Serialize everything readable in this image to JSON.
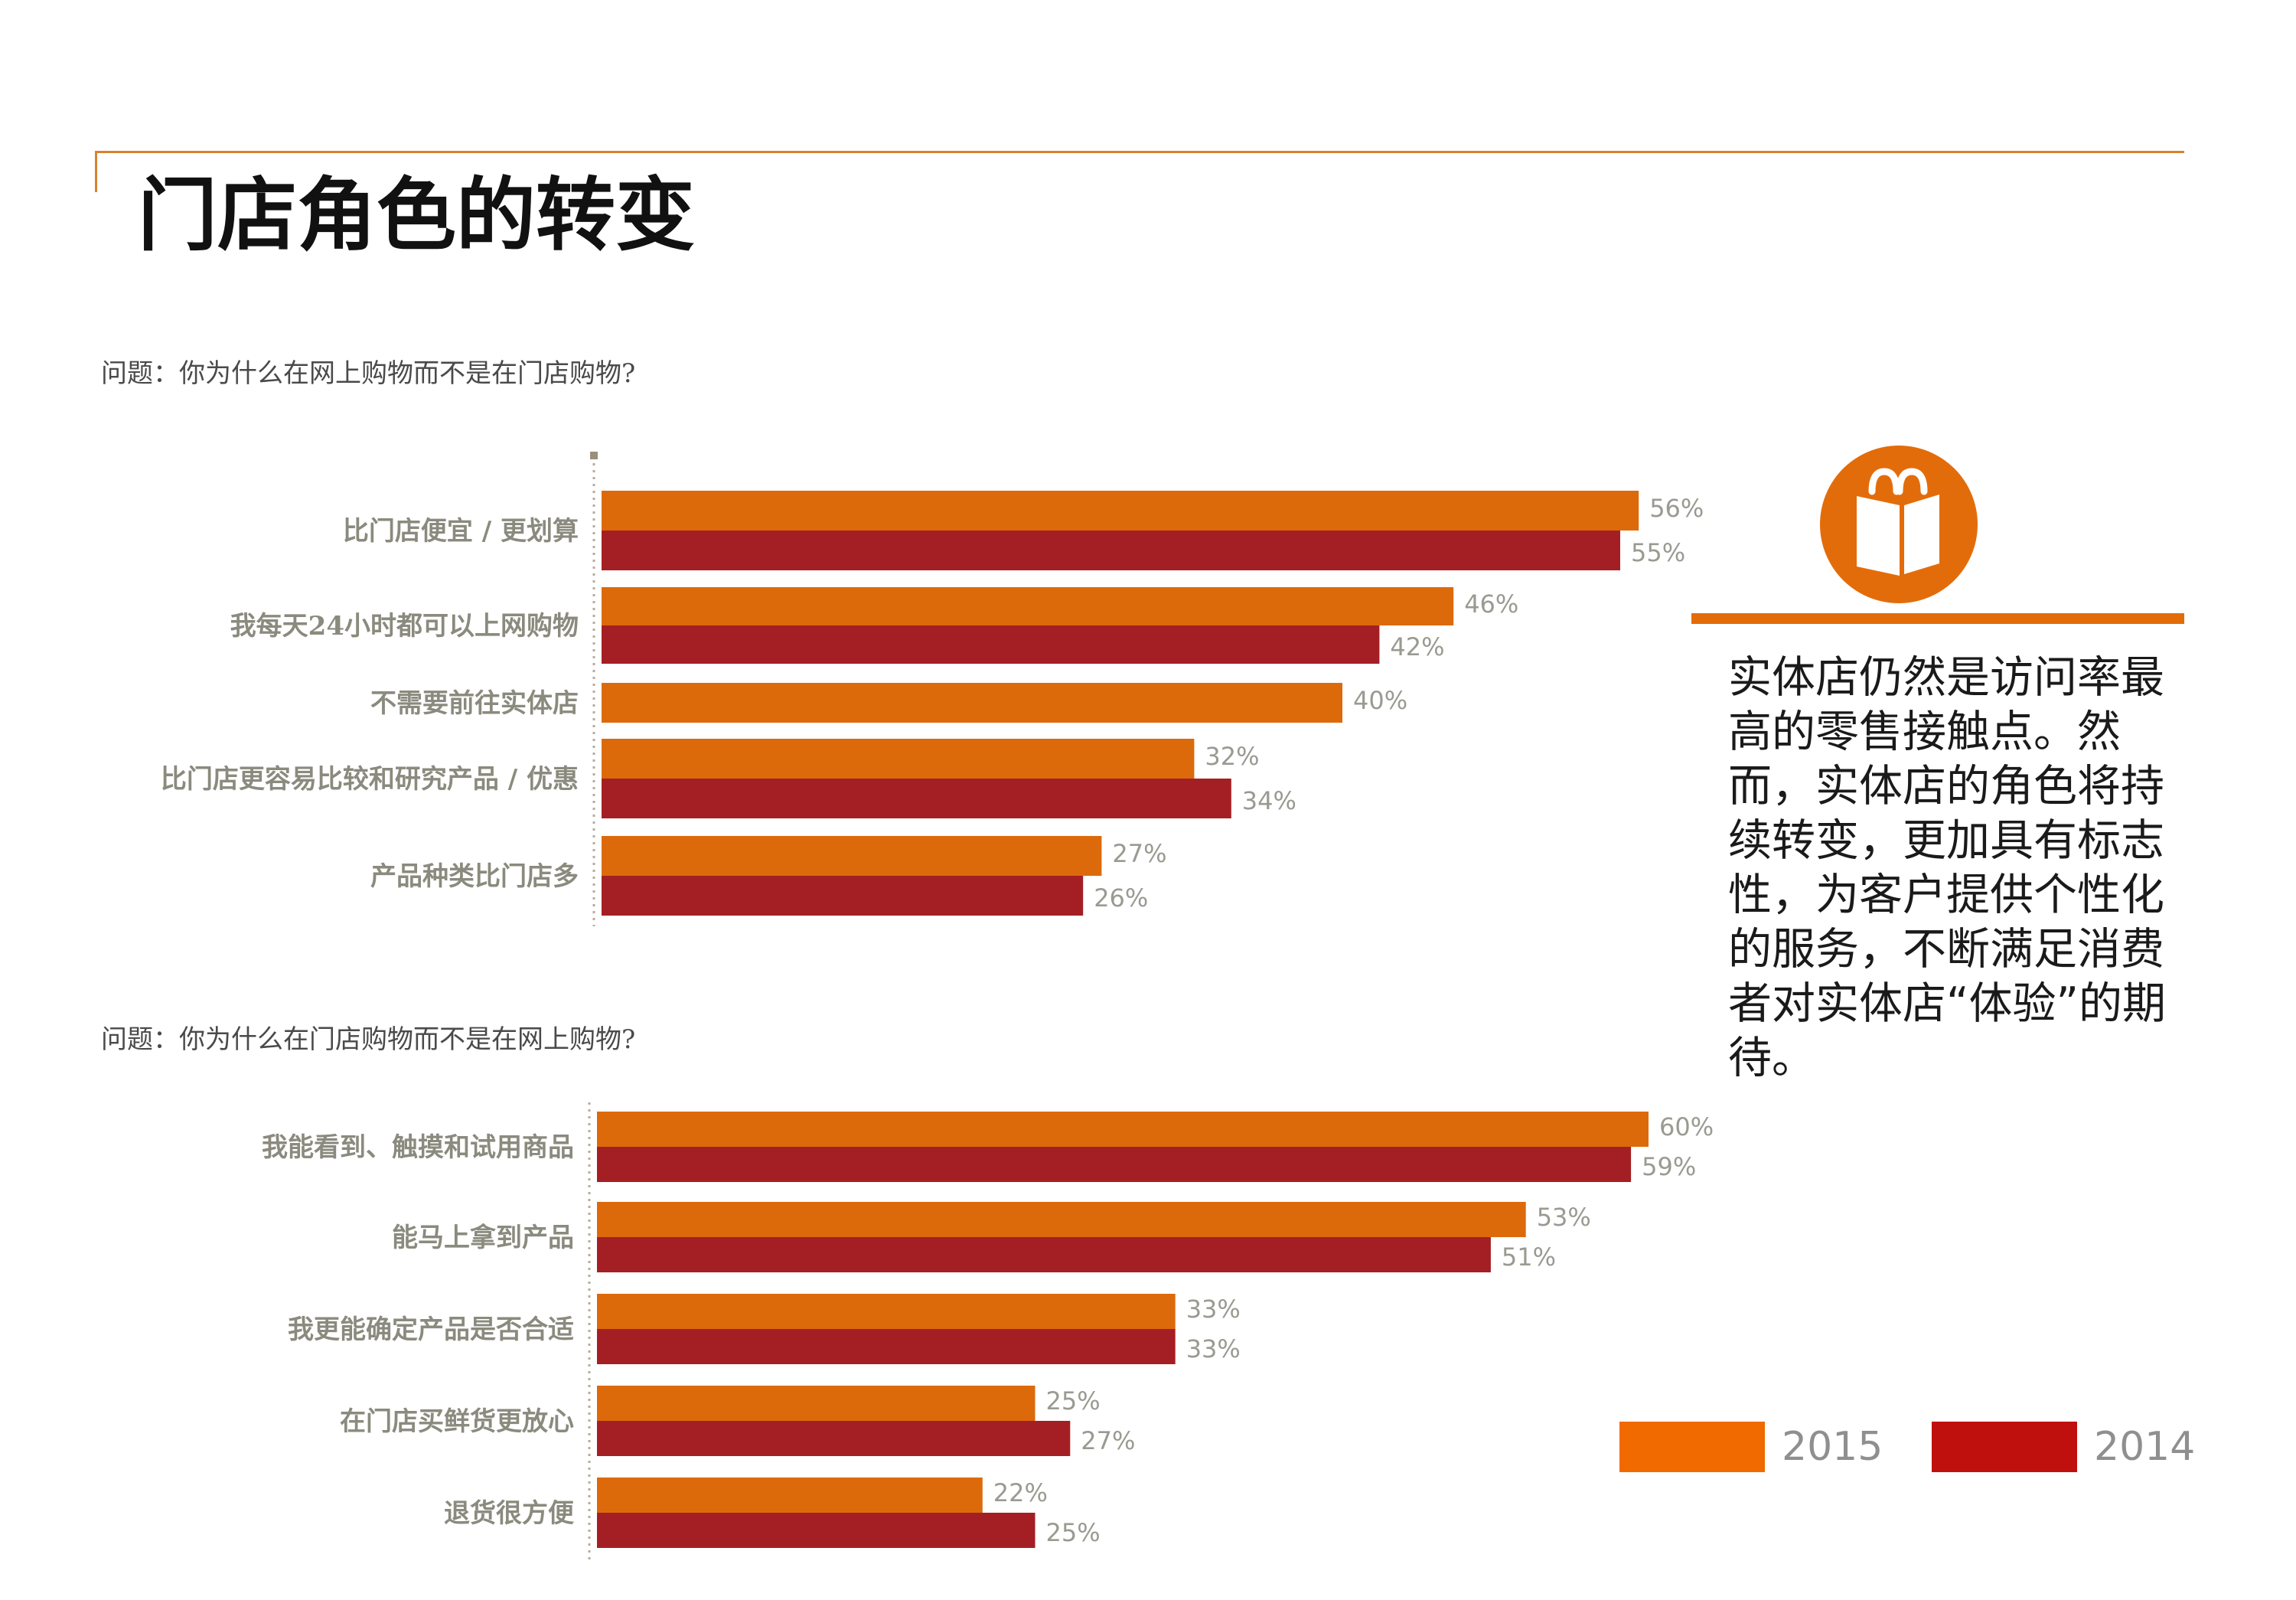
{
  "title": "门店角色的转变",
  "side_note": "实体店仍然是访问率最高的零售接触点。然而，实体店的角色将持续转变，更加具有标志性，为客户提供个性化的服务，不断满足消费者对实体店“体验”的期待。",
  "icon": "shopping-bag-icon",
  "colors": {
    "accent": "#e36c0a",
    "bar_2015": "#dc6a0b",
    "bar_2014": "#a41f23",
    "legend_2015": "#f06a00",
    "legend_2014": "#c0100e",
    "rule": "#d9822b"
  },
  "legend": {
    "items": [
      {
        "label": "2015"
      },
      {
        "label": "2014"
      }
    ]
  },
  "chart_data": [
    {
      "type": "bar",
      "orientation": "horizontal",
      "title": "问题：你为什么在网上购物而不是在门店购物?",
      "categories": [
        "比门店便宜 / 更划算",
        "我每天24小时都可以上网购物",
        "不需要前往实体店",
        "比门店更容易比较和研究产品 / 优惠",
        "产品种类比门店多"
      ],
      "series": [
        {
          "name": "2015",
          "values": [
            56,
            46,
            40,
            32,
            27
          ],
          "labels": [
            "56%",
            "46%",
            "40%",
            "32%",
            "27%"
          ]
        },
        {
          "name": "2014",
          "values": [
            55,
            42,
            null,
            34,
            26
          ],
          "labels": [
            "55%",
            "42%",
            null,
            "34%",
            "26%"
          ]
        }
      ],
      "unit": "%"
    },
    {
      "type": "bar",
      "orientation": "horizontal",
      "title": "问题：你为什么在门店购物而不是在网上购物?",
      "categories": [
        "我能看到、触摸和试用商品",
        "能马上拿到产品",
        "我更能确定产品是否合适",
        "在门店买鲜货更放心",
        "退货很方便"
      ],
      "series": [
        {
          "name": "2015",
          "values": [
            60,
            53,
            33,
            25,
            22
          ],
          "labels": [
            "60%",
            "53%",
            "33%",
            "25%",
            "22%"
          ]
        },
        {
          "name": "2014",
          "values": [
            59,
            51,
            33,
            27,
            25
          ],
          "labels": [
            "59%",
            "51%",
            "33%",
            "27%",
            "25%"
          ]
        }
      ],
      "unit": "%"
    }
  ]
}
